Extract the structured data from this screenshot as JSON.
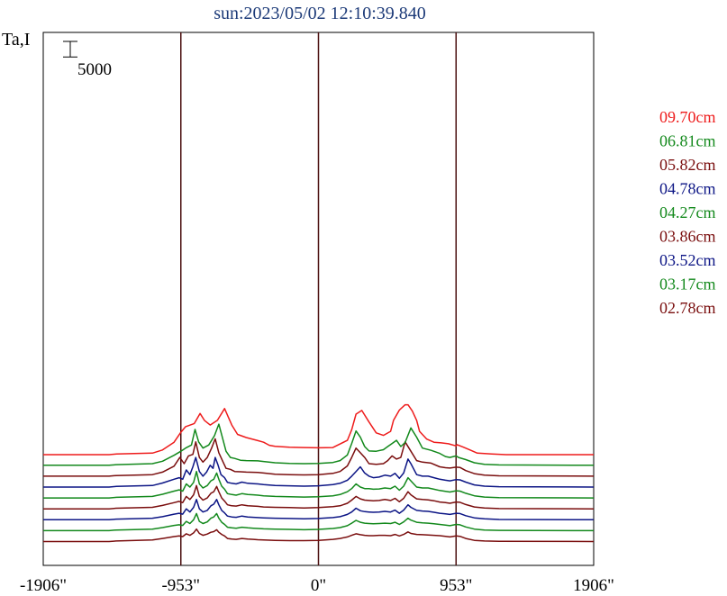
{
  "chart_data": {
    "type": "line",
    "title": "sun:2023/05/02 12:10:39.840",
    "ylabel": "Ta,I",
    "scale_bar": {
      "label": "5000",
      "value": 5000
    },
    "xlim": [
      -1906,
      1906
    ],
    "x_ticks": [
      -1906,
      -953,
      0,
      953,
      1906
    ],
    "x_tick_labels": [
      "-1906\"",
      "-953\"",
      "0\"",
      "953\"",
      "1906\""
    ],
    "vertical_lines": [
      -953,
      0,
      953
    ],
    "legend_placement": "right",
    "series": [
      {
        "name": "09.70cm",
        "color": "#ee1c1c",
        "baseline": 31500,
        "x": [
          -1906,
          -1450,
          -1400,
          -1150,
          -1080,
          -1000,
          -953,
          -920,
          -860,
          -820,
          -790,
          -750,
          -700,
          -650,
          -600,
          -560,
          -500,
          -420,
          -380,
          -340,
          -300,
          -200,
          -100,
          0,
          100,
          200,
          230,
          260,
          300,
          350,
          400,
          450,
          500,
          520,
          560,
          600,
          620,
          650,
          680,
          700,
          750,
          800,
          850,
          900,
          953,
          960,
          1000,
          1050,
          1100,
          1200,
          1300,
          1906
        ],
        "y": [
          0,
          0,
          200,
          500,
          1500,
          4000,
          7200,
          9000,
          10000,
          13200,
          11000,
          9500,
          11000,
          14800,
          9500,
          6500,
          5500,
          4500,
          4000,
          3000,
          2700,
          2400,
          2300,
          2200,
          2300,
          4600,
          8000,
          13000,
          14200,
          10500,
          7000,
          6200,
          7500,
          11000,
          14300,
          16000,
          16000,
          14000,
          11000,
          7500,
          5000,
          4000,
          3800,
          3500,
          2800,
          3200,
          2500,
          1500,
          500,
          200,
          0,
          0
        ]
      },
      {
        "name": "06.81cm",
        "color": "#13891c",
        "baseline": 28100,
        "x": [
          -1906,
          -1450,
          -1400,
          -1150,
          -1080,
          -1000,
          -953,
          -920,
          -880,
          -855,
          -830,
          -800,
          -760,
          -720,
          -690,
          -660,
          -640,
          -610,
          -580,
          -540,
          -500,
          -420,
          -380,
          -300,
          -200,
          -100,
          0,
          100,
          150,
          200,
          230,
          260,
          290,
          320,
          350,
          400,
          450,
          480,
          510,
          540,
          570,
          600,
          640,
          680,
          720,
          780,
          840,
          880,
          910,
          953,
          970,
          1020,
          1080,
          1150,
          1250,
          1906
        ],
        "y": [
          0,
          0,
          200,
          500,
          1300,
          3200,
          4500,
          5500,
          6500,
          11500,
          7500,
          5500,
          6500,
          9500,
          13200,
          8000,
          4500,
          2500,
          2200,
          1600,
          1500,
          1400,
          1200,
          800,
          600,
          500,
          600,
          900,
          1500,
          3300,
          7000,
          11000,
          9000,
          6000,
          4600,
          4500,
          5000,
          6000,
          7000,
          8000,
          6000,
          7300,
          12000,
          9000,
          5500,
          4800,
          3800,
          2800,
          2500,
          3000,
          2500,
          1800,
          800,
          300,
          100,
          0
        ]
      },
      {
        "name": "05.82cm",
        "color": "#7a0e0e",
        "baseline": 24600,
        "x": [
          -1906,
          -1450,
          -1400,
          -1150,
          -1080,
          -1000,
          -960,
          -930,
          -900,
          -870,
          -850,
          -825,
          -800,
          -770,
          -740,
          -715,
          -690,
          -660,
          -640,
          -610,
          -580,
          -540,
          -500,
          -420,
          -380,
          -300,
          -200,
          -100,
          0,
          100,
          150,
          200,
          230,
          260,
          290,
          320,
          350,
          400,
          450,
          480,
          510,
          540,
          570,
          600,
          640,
          680,
          720,
          780,
          840,
          880,
          910,
          953,
          980,
          1020,
          1080,
          1150,
          1250,
          1906
        ],
        "y": [
          0,
          0,
          200,
          500,
          1300,
          3200,
          6000,
          4000,
          6500,
          7000,
          11000,
          6000,
          4500,
          6000,
          9000,
          12000,
          7500,
          4500,
          2500,
          2200,
          1500,
          1400,
          1300,
          1200,
          1000,
          600,
          500,
          400,
          500,
          900,
          1500,
          3300,
          6000,
          9000,
          7500,
          6000,
          4000,
          3800,
          4000,
          5000,
          6500,
          5500,
          6000,
          11000,
          8000,
          5000,
          4500,
          4200,
          3000,
          2700,
          2600,
          2900,
          2800,
          1800,
          800,
          300,
          100,
          0
        ]
      },
      {
        "name": "04.78cm",
        "color": "#0c1585",
        "baseline": 21100,
        "x": [
          -1906,
          -1450,
          -1400,
          -1150,
          -1080,
          -1000,
          -965,
          -940,
          -915,
          -890,
          -870,
          -850,
          -825,
          -800,
          -775,
          -750,
          -730,
          -715,
          -695,
          -675,
          -650,
          -630,
          -600,
          -570,
          -530,
          -490,
          -450,
          -420,
          -380,
          -300,
          -200,
          -100,
          0,
          100,
          150,
          200,
          230,
          260,
          290,
          320,
          350,
          380,
          420,
          460,
          500,
          530,
          560,
          590,
          620,
          640,
          680,
          720,
          760,
          800,
          840,
          880,
          910,
          953,
          980,
          1020,
          1080,
          1150,
          1250,
          1906
        ],
        "y": [
          0,
          0,
          200,
          500,
          1300,
          2500,
          3000,
          2500,
          5500,
          4000,
          6500,
          9500,
          5000,
          3500,
          4800,
          7000,
          6000,
          9500,
          7000,
          4000,
          3000,
          1500,
          1200,
          1000,
          1600,
          1200,
          1100,
          1000,
          800,
          500,
          400,
          300,
          400,
          800,
          1200,
          2200,
          3500,
          5000,
          6500,
          4500,
          3500,
          3000,
          3200,
          3800,
          3500,
          4400,
          2800,
          4500,
          9000,
          7500,
          4000,
          3500,
          3500,
          3000,
          2500,
          2200,
          2000,
          2400,
          2300,
          1600,
          700,
          300,
          100,
          0
        ]
      },
      {
        "name": "04.27cm",
        "color": "#13891c",
        "baseline": 17600,
        "x": [
          -1906,
          -1450,
          -1400,
          -1150,
          -1080,
          -1000,
          -965,
          -940,
          -915,
          -890,
          -865,
          -845,
          -825,
          -800,
          -770,
          -745,
          -725,
          -705,
          -690,
          -670,
          -650,
          -630,
          -600,
          -570,
          -530,
          -490,
          -450,
          -420,
          -380,
          -300,
          -200,
          -100,
          0,
          100,
          150,
          200,
          230,
          260,
          290,
          320,
          350,
          380,
          420,
          460,
          500,
          530,
          560,
          590,
          620,
          640,
          680,
          720,
          760,
          800,
          840,
          880,
          910,
          953,
          980,
          1020,
          1080,
          1150,
          1250,
          1906
        ],
        "y": [
          0,
          0,
          200,
          500,
          1200,
          2200,
          2600,
          2200,
          4500,
          3500,
          5000,
          8500,
          4500,
          3200,
          4000,
          5500,
          6000,
          8000,
          6000,
          3800,
          2800,
          1400,
          1100,
          900,
          1400,
          1100,
          1000,
          900,
          700,
          500,
          400,
          300,
          400,
          700,
          1100,
          2000,
          3000,
          4500,
          3500,
          3000,
          3000,
          2800,
          2900,
          3200,
          3000,
          3800,
          2500,
          3800,
          6500,
          5500,
          3500,
          3200,
          3200,
          2800,
          2400,
          2100,
          1900,
          2300,
          2200,
          1500,
          700,
          300,
          100,
          0
        ]
      },
      {
        "name": "03.86cm",
        "color": "#7a0e0e",
        "baseline": 14100,
        "x": [
          -1906,
          -1450,
          -1400,
          -1150,
          -1080,
          -1000,
          -965,
          -940,
          -915,
          -890,
          -865,
          -845,
          -825,
          -800,
          -770,
          -745,
          -725,
          -705,
          -690,
          -670,
          -650,
          -630,
          -600,
          -570,
          -530,
          -490,
          -450,
          -420,
          -380,
          -300,
          -200,
          -100,
          0,
          100,
          150,
          200,
          230,
          260,
          290,
          320,
          350,
          380,
          420,
          460,
          500,
          530,
          560,
          590,
          620,
          640,
          680,
          720,
          760,
          800,
          840,
          880,
          910,
          953,
          980,
          1020,
          1080,
          1150,
          1250,
          1906
        ],
        "y": [
          0,
          0,
          200,
          500,
          1100,
          2000,
          2400,
          2000,
          4000,
          3000,
          4500,
          7500,
          4000,
          2800,
          3500,
          5000,
          5500,
          7200,
          5500,
          3500,
          2500,
          1300,
          1000,
          900,
          1300,
          1000,
          900,
          800,
          600,
          500,
          400,
          300,
          400,
          700,
          1000,
          1800,
          2800,
          4000,
          3200,
          2800,
          2700,
          2600,
          2700,
          3000,
          2700,
          3400,
          2300,
          3400,
          5500,
          4500,
          3200,
          3000,
          2900,
          2600,
          2200,
          2000,
          1800,
          2200,
          2100,
          1400,
          600,
          300,
          100,
          0
        ]
      },
      {
        "name": "03.52cm",
        "color": "#0c1585",
        "baseline": 10600,
        "x": [
          -1906,
          -1450,
          -1400,
          -1150,
          -1080,
          -1000,
          -965,
          -940,
          -915,
          -890,
          -865,
          -845,
          -825,
          -800,
          -770,
          -745,
          -725,
          -705,
          -690,
          -670,
          -650,
          -630,
          -600,
          -570,
          -530,
          -490,
          -450,
          -420,
          -380,
          -300,
          -200,
          -100,
          0,
          100,
          150,
          200,
          230,
          260,
          290,
          320,
          350,
          380,
          420,
          460,
          500,
          530,
          560,
          590,
          620,
          640,
          680,
          720,
          760,
          800,
          840,
          880,
          910,
          953,
          980,
          1020,
          1080,
          1150,
          1250,
          1906
        ],
        "y": [
          0,
          0,
          200,
          500,
          1000,
          1800,
          2100,
          1800,
          3500,
          2500,
          4000,
          6500,
          3500,
          2500,
          3000,
          4500,
          5000,
          6500,
          4800,
          3000,
          2200,
          1200,
          900,
          800,
          1200,
          900,
          800,
          700,
          600,
          500,
          400,
          300,
          400,
          700,
          1000,
          1700,
          2500,
          3700,
          2900,
          2600,
          2500,
          2400,
          2500,
          2700,
          2500,
          3100,
          2100,
          3100,
          4800,
          4000,
          3000,
          2800,
          2700,
          2400,
          2100,
          1900,
          1700,
          2100,
          2000,
          1300,
          600,
          300,
          100,
          0
        ]
      },
      {
        "name": "03.17cm",
        "color": "#13891c",
        "baseline": 7100,
        "x": [
          -1906,
          -1450,
          -1400,
          -1150,
          -1080,
          -1000,
          -965,
          -940,
          -915,
          -890,
          -865,
          -845,
          -825,
          -800,
          -770,
          -745,
          -725,
          -705,
          -690,
          -670,
          -650,
          -630,
          -600,
          -570,
          -530,
          -490,
          -450,
          -420,
          -380,
          -300,
          -200,
          -100,
          0,
          100,
          150,
          200,
          230,
          260,
          290,
          320,
          350,
          380,
          420,
          460,
          500,
          530,
          560,
          590,
          620,
          640,
          680,
          720,
          760,
          800,
          840,
          880,
          910,
          953,
          980,
          1020,
          1080,
          1150,
          1250,
          1906
        ],
        "y": [
          0,
          0,
          200,
          500,
          1000,
          1700,
          1900,
          1700,
          3000,
          2300,
          3500,
          5500,
          3000,
          2300,
          2800,
          4000,
          4400,
          5500,
          4000,
          2700,
          2000,
          1100,
          900,
          800,
          1100,
          900,
          800,
          700,
          600,
          500,
          400,
          300,
          400,
          700,
          1000,
          1600,
          2400,
          3300,
          2700,
          2400,
          2300,
          2200,
          2300,
          2400,
          2300,
          2700,
          2000,
          2800,
          4000,
          3400,
          2700,
          2500,
          2400,
          2200,
          2000,
          1800,
          1600,
          2000,
          1900,
          1200,
          500,
          200,
          100,
          0
        ]
      },
      {
        "name": "02.78cm",
        "color": "#7a0e0e",
        "baseline": 3600,
        "x": [
          -1906,
          -1450,
          -1400,
          -1150,
          -1080,
          -1000,
          -965,
          -940,
          -915,
          -890,
          -865,
          -845,
          -825,
          -800,
          -770,
          -745,
          -725,
          -705,
          -690,
          -670,
          -650,
          -630,
          -600,
          -570,
          -530,
          -490,
          -450,
          -420,
          -380,
          -300,
          -200,
          -100,
          0,
          100,
          150,
          200,
          230,
          260,
          290,
          320,
          350,
          380,
          420,
          460,
          500,
          530,
          560,
          590,
          620,
          640,
          680,
          720,
          760,
          800,
          840,
          880,
          910,
          953,
          980,
          1020,
          1080,
          1150,
          1250,
          1906
        ],
        "y": [
          0,
          0,
          200,
          500,
          1000,
          1600,
          1800,
          1600,
          2500,
          2000,
          2800,
          4000,
          2600,
          2000,
          2400,
          3000,
          3200,
          3800,
          3000,
          2300,
          1800,
          1000,
          800,
          700,
          1000,
          800,
          700,
          600,
          500,
          400,
          300,
          300,
          400,
          700,
          1000,
          1500,
          2000,
          2500,
          2200,
          2000,
          1900,
          1900,
          2000,
          2000,
          1900,
          2300,
          1800,
          2300,
          3100,
          2600,
          2300,
          2200,
          2100,
          2000,
          1900,
          1700,
          1500,
          1800,
          1700,
          1000,
          400,
          200,
          100,
          0
        ]
      }
    ]
  }
}
